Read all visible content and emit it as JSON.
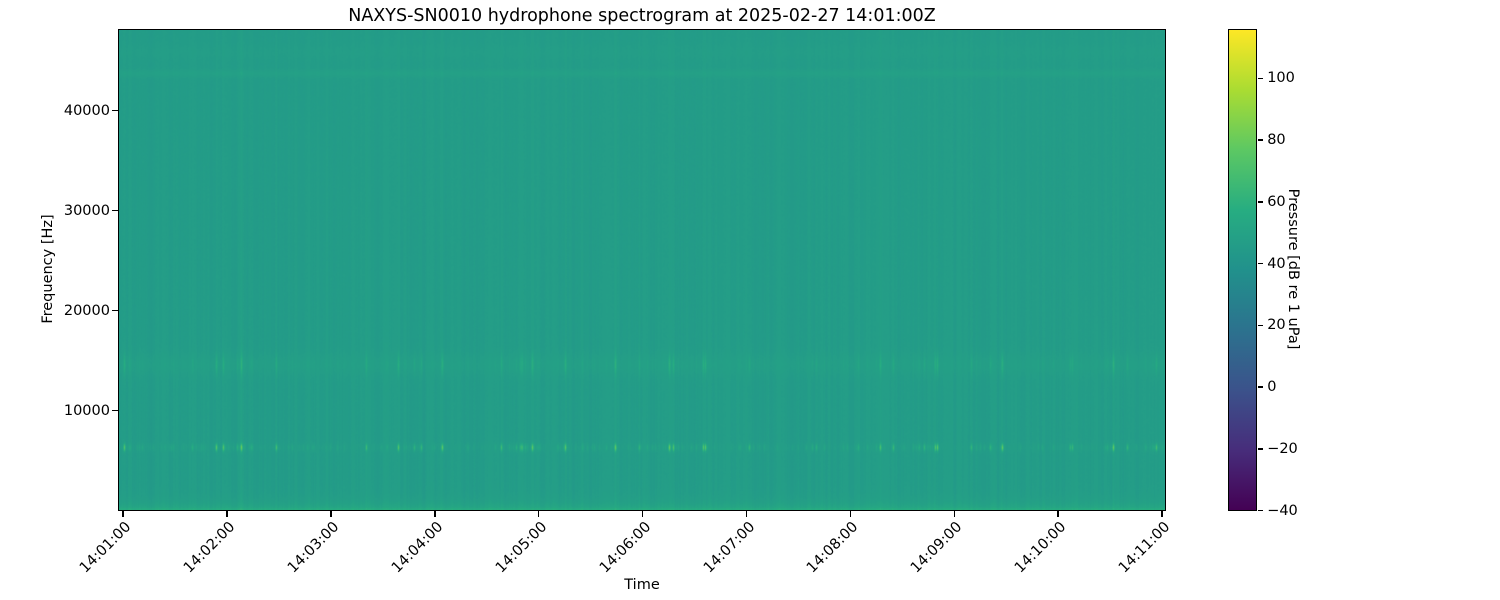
{
  "chart_data": {
    "type": "heatmap",
    "subtype": "spectrogram",
    "title": "NAXYS-SN0010 hydrophone spectrogram at 2025-02-27 14:01:00Z",
    "xlabel": "Time",
    "ylabel": "Frequency [Hz]",
    "x_ticks": [
      {
        "label": "14:01:00"
      },
      {
        "label": "14:02:00"
      },
      {
        "label": "14:03:00"
      },
      {
        "label": "14:04:00"
      },
      {
        "label": "14:05:00"
      },
      {
        "label": "14:06:00"
      },
      {
        "label": "14:07:00"
      },
      {
        "label": "14:08:00"
      },
      {
        "label": "14:09:00"
      },
      {
        "label": "14:10:00"
      },
      {
        "label": "14:11:00"
      }
    ],
    "x_range": [
      "14:01:00",
      "14:11:00"
    ],
    "y_ticks": [
      {
        "label": "10000",
        "value": 10000
      },
      {
        "label": "20000",
        "value": 20000
      },
      {
        "label": "30000",
        "value": 30000
      },
      {
        "label": "40000",
        "value": 40000
      }
    ],
    "y_range_hz": [
      0,
      48000
    ],
    "grid": false,
    "colorbar": {
      "label": "Pressure [dB re 1 uPa]",
      "position": "right",
      "vmin": -40,
      "vmax": 115.5,
      "colormap": "viridis",
      "ticks": [
        {
          "label": "100",
          "value": 100
        },
        {
          "label": "80",
          "value": 80
        },
        {
          "label": "60",
          "value": 60
        },
        {
          "label": "40",
          "value": 40
        },
        {
          "label": "20",
          "value": 20
        },
        {
          "label": "0",
          "value": 0
        },
        {
          "label": "−20",
          "value": -20
        },
        {
          "label": "−40",
          "value": -40
        }
      ],
      "gradient_stops": [
        {
          "pos": 0.0,
          "color": "#440154"
        },
        {
          "pos": 0.125,
          "color": "#472d7b"
        },
        {
          "pos": 0.25,
          "color": "#3b528b"
        },
        {
          "pos": 0.375,
          "color": "#2c728e"
        },
        {
          "pos": 0.5,
          "color": "#21918c"
        },
        {
          "pos": 0.625,
          "color": "#27ad81"
        },
        {
          "pos": 0.75,
          "color": "#5cc863"
        },
        {
          "pos": 0.875,
          "color": "#aadc32"
        },
        {
          "pos": 1.0,
          "color": "#fde725"
        }
      ]
    },
    "content": {
      "background_level_db": 45.5,
      "background_color_approx": "#239c88",
      "features": [
        {
          "name": "low-frequency-noise-band",
          "type": "band",
          "center_hz": 0,
          "sigma_hz": 650,
          "peak_db_above_background": 12
        },
        {
          "name": "tonal-pulse-train",
          "type": "pulsed-band",
          "center_hz": 6300,
          "sigma_hz": 260,
          "peak_db_above_background": 33
        },
        {
          "name": "secondary-pulse-band",
          "type": "pulsed-band",
          "center_hz": 14600,
          "sigma_hz": 750,
          "peak_db_above_background": 10
        },
        {
          "name": "high-frequency-tonal",
          "type": "band",
          "center_hz": 43700,
          "sigma_hz": 250,
          "peak_db_above_background": 3
        },
        {
          "name": "broadband-transient-striations",
          "type": "vertical-lines",
          "peak_db_above_background": 2
        }
      ]
    }
  }
}
